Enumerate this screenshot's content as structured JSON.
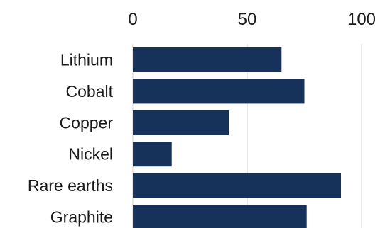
{
  "chart_data": {
    "type": "bar",
    "orientation": "horizontal",
    "categories": [
      "Lithium",
      "Cobalt",
      "Copper",
      "Nickel",
      "Rare earths",
      "Graphite"
    ],
    "values": [
      65,
      75,
      42,
      17,
      91,
      76
    ],
    "xlim": [
      0,
      100
    ],
    "x_ticks": [
      0,
      50,
      100
    ],
    "tick_labels": [
      "0",
      "50",
      "100"
    ],
    "axis_position": "top",
    "grid": true,
    "legend": "none",
    "colors": {
      "bar": "#17325a",
      "grid": "#d0d0d0",
      "text": "#1a1a1a"
    }
  }
}
